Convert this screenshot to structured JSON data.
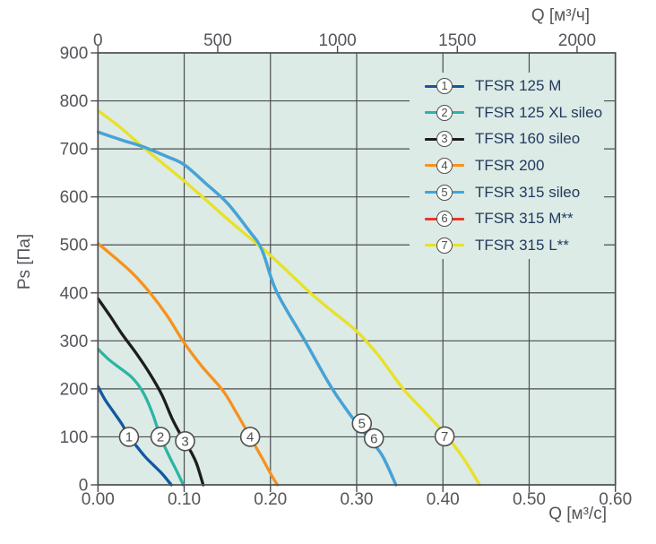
{
  "colors": {
    "page_bg": "#ffffff",
    "plot_bg": "#dcebe5",
    "grid": "#4c4d4f",
    "axis_text": "#54555a",
    "legend_text": "#233a60",
    "marker_fill": "#ffffff",
    "marker_stroke": "#4f5052"
  },
  "chart_data": {
    "type": "line",
    "title": "",
    "x_bottom": {
      "label": "Q [м³/с]",
      "min": 0,
      "max": 0.6,
      "ticks": [
        0,
        0.1,
        0.2,
        0.3,
        0.4,
        0.5,
        0.6
      ],
      "tick_labels": [
        "0.00",
        "0.10",
        "0.20",
        "0.30",
        "0.40",
        "0.50",
        "0.60"
      ]
    },
    "x_top": {
      "label": "Q [м³/ч]",
      "unit_factor_to_bottom": 3600,
      "ticks": [
        0,
        500,
        1000,
        1500,
        2000
      ],
      "tick_labels": [
        "0",
        "500",
        "1000",
        "1500",
        "2000"
      ]
    },
    "y": {
      "label": "Ps [Па]",
      "min": 0,
      "max": 900,
      "ticks": [
        0,
        100,
        200,
        300,
        400,
        500,
        600,
        700,
        800,
        900
      ],
      "tick_labels": [
        "0",
        "100",
        "200",
        "300",
        "400",
        "500",
        "600",
        "700",
        "800",
        "900"
      ]
    },
    "grid": true,
    "legend_position": "top-right-inside",
    "series": [
      {
        "num": "1",
        "name": "TFSR 125 M",
        "color": "#1457a3",
        "points": [
          [
            0,
            205
          ],
          [
            0.008,
            178
          ],
          [
            0.018,
            152
          ],
          [
            0.028,
            126
          ],
          [
            0.036,
            100
          ],
          [
            0.045,
            80
          ],
          [
            0.055,
            58
          ],
          [
            0.065,
            40
          ],
          [
            0.075,
            22
          ],
          [
            0.085,
            0
          ]
        ]
      },
      {
        "num": "2",
        "name": "TFSR 125 XL sileo",
        "color": "#2cb5a4",
        "points": [
          [
            0,
            283
          ],
          [
            0.012,
            262
          ],
          [
            0.025,
            244
          ],
          [
            0.038,
            226
          ],
          [
            0.048,
            205
          ],
          [
            0.056,
            180
          ],
          [
            0.064,
            145
          ],
          [
            0.0725,
            100
          ],
          [
            0.082,
            62
          ],
          [
            0.091,
            30
          ],
          [
            0.099,
            0
          ]
        ]
      },
      {
        "num": "3",
        "name": "TFSR 160 sileo",
        "color": "#1d1d1b",
        "points": [
          [
            0,
            388
          ],
          [
            0.014,
            352
          ],
          [
            0.028,
            314
          ],
          [
            0.044,
            275
          ],
          [
            0.06,
            232
          ],
          [
            0.074,
            188
          ],
          [
            0.086,
            138
          ],
          [
            0.096,
            104
          ],
          [
            0.105,
            78
          ],
          [
            0.114,
            46
          ],
          [
            0.122,
            0
          ]
        ]
      },
      {
        "num": "4",
        "name": "TFSR 200",
        "color": "#f6921e",
        "points": [
          [
            0,
            503
          ],
          [
            0.02,
            473
          ],
          [
            0.04,
            441
          ],
          [
            0.06,
            401
          ],
          [
            0.08,
            353
          ],
          [
            0.1,
            296
          ],
          [
            0.12,
            248
          ],
          [
            0.145,
            196
          ],
          [
            0.16,
            152
          ],
          [
            0.1765,
            100
          ],
          [
            0.19,
            57
          ],
          [
            0.2,
            24
          ],
          [
            0.208,
            0
          ]
        ]
      },
      {
        "num": "5",
        "name": "TFSR 315 sileo",
        "color": "#3fa6de",
        "points": [
          [
            0,
            735
          ],
          [
            0.03,
            717
          ],
          [
            0.05,
            706
          ],
          [
            0.08,
            684
          ],
          [
            0.1,
            667
          ],
          [
            0.125,
            628
          ],
          [
            0.15,
            587
          ],
          [
            0.175,
            530
          ],
          [
            0.19,
            490
          ],
          [
            0.207,
            403
          ],
          [
            0.24,
            300
          ],
          [
            0.27,
            205
          ],
          [
            0.295,
            140
          ],
          [
            0.315,
            95
          ],
          [
            0.33,
            60
          ],
          [
            0.3455,
            0
          ]
        ]
      },
      {
        "num": "6",
        "name": "TFSR 315 M**",
        "color": "#e8362e",
        "note": "curve coincides with TFSR 315 sileo and is hidden beneath it",
        "points": [
          [
            0,
            735
          ],
          [
            0.03,
            717
          ],
          [
            0.05,
            706
          ],
          [
            0.08,
            684
          ],
          [
            0.1,
            667
          ],
          [
            0.125,
            628
          ],
          [
            0.15,
            587
          ],
          [
            0.175,
            530
          ],
          [
            0.19,
            490
          ],
          [
            0.207,
            403
          ],
          [
            0.24,
            300
          ],
          [
            0.27,
            205
          ],
          [
            0.295,
            140
          ],
          [
            0.315,
            95
          ],
          [
            0.33,
            60
          ],
          [
            0.3455,
            0
          ]
        ]
      },
      {
        "num": "7",
        "name": "TFSR 315 L**",
        "color": "#e8e127",
        "points": [
          [
            0,
            780
          ],
          [
            0.025,
            746
          ],
          [
            0.05,
            707
          ],
          [
            0.075,
            670
          ],
          [
            0.1,
            633
          ],
          [
            0.125,
            594
          ],
          [
            0.15,
            554
          ],
          [
            0.175,
            516
          ],
          [
            0.2,
            478
          ],
          [
            0.245,
            402
          ],
          [
            0.27,
            364
          ],
          [
            0.3,
            320
          ],
          [
            0.325,
            270
          ],
          [
            0.354,
            200
          ],
          [
            0.38,
            150
          ],
          [
            0.405,
            100
          ],
          [
            0.425,
            52
          ],
          [
            0.4425,
            0
          ]
        ]
      }
    ],
    "curve_markers": [
      {
        "num": "1",
        "x": 0.036,
        "y": 100
      },
      {
        "num": "2",
        "x": 0.0725,
        "y": 100
      },
      {
        "num": "3",
        "x": 0.101,
        "y": 91
      },
      {
        "num": "4",
        "x": 0.1765,
        "y": 100
      },
      {
        "num": "5",
        "x": 0.306,
        "y": 128
      },
      {
        "num": "6",
        "x": 0.32,
        "y": 97
      },
      {
        "num": "7",
        "x": 0.402,
        "y": 101
      }
    ]
  }
}
